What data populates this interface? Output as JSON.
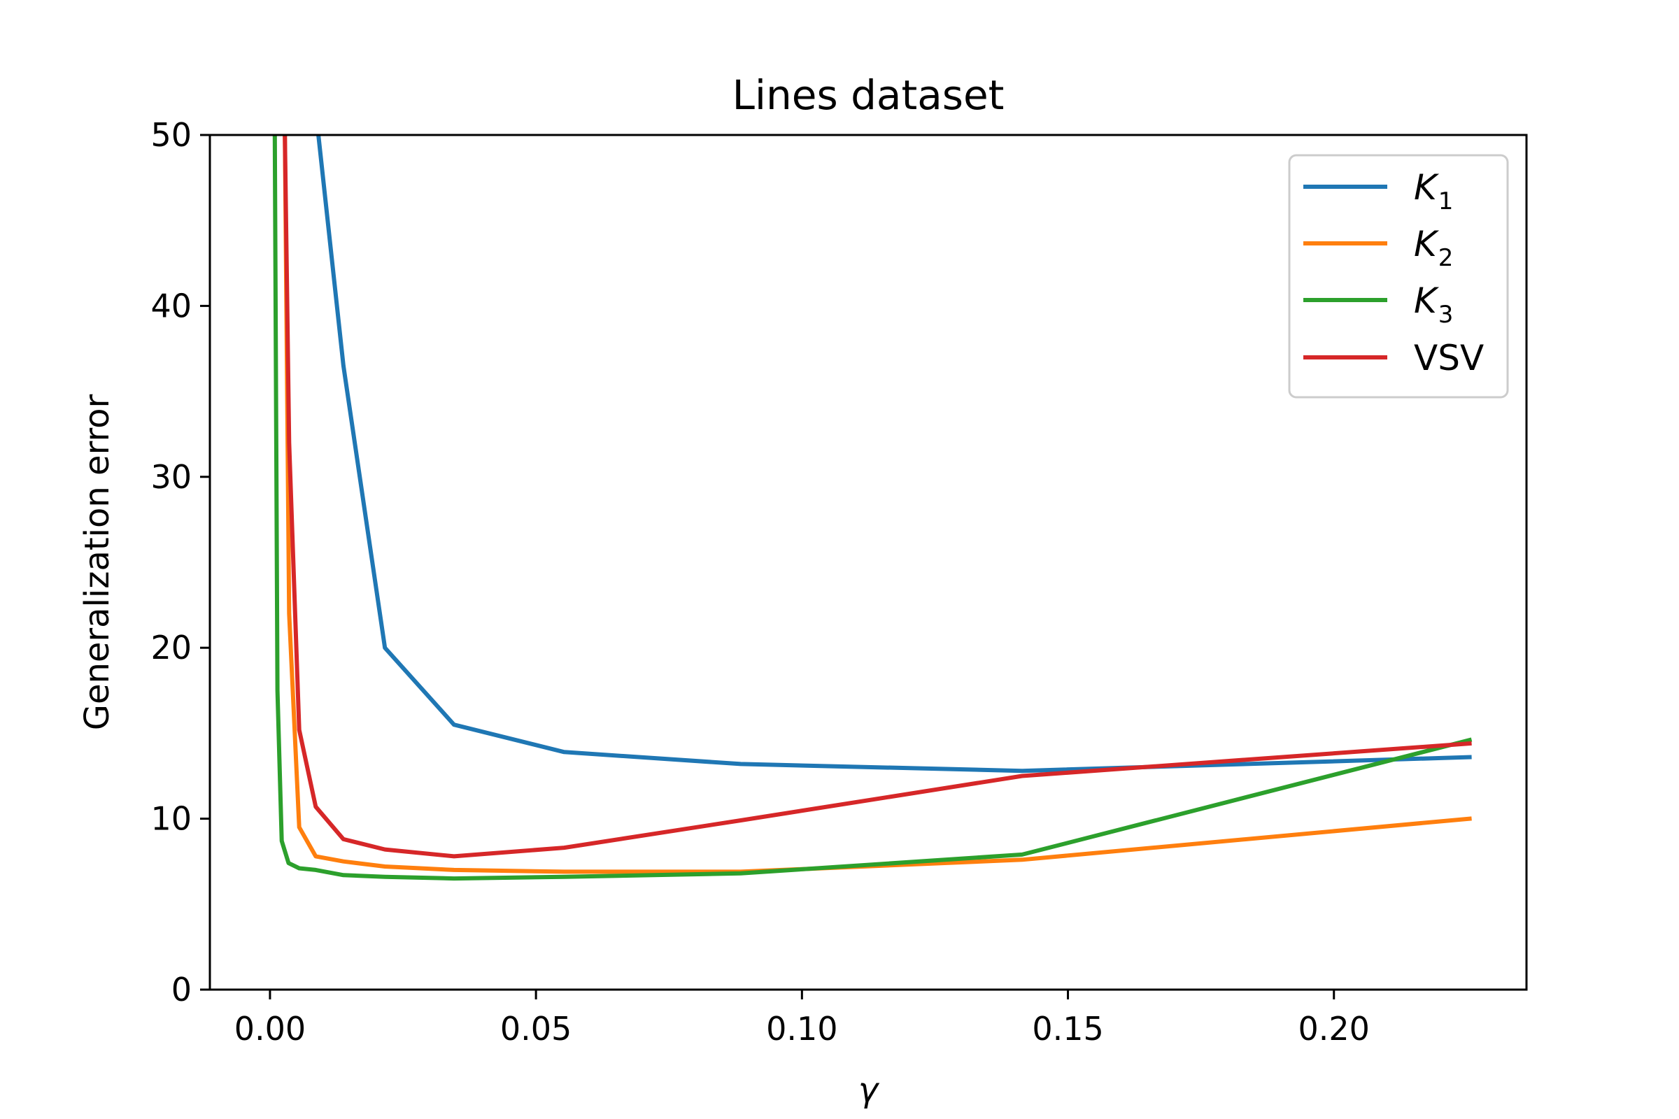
{
  "chart_data": {
    "type": "line",
    "title": "Lines dataset",
    "xlabel": "γ",
    "ylabel": "Generalization error",
    "xlim": [
      -0.0113,
      0.2362
    ],
    "ylim": [
      0,
      50
    ],
    "x_ticks": [
      0.0,
      0.05,
      0.1,
      0.15,
      0.2
    ],
    "x_tick_labels": [
      "0.00",
      "0.05",
      "0.10",
      "0.15",
      "0.20"
    ],
    "y_ticks": [
      0,
      10,
      20,
      30,
      40,
      50
    ],
    "y_tick_labels": [
      "0",
      "10",
      "20",
      "30",
      "40",
      "50"
    ],
    "grid": false,
    "legend_position": "top-right",
    "series": [
      {
        "name": "K1",
        "legend_main": "K",
        "legend_sub": "1",
        "color": "#1f77b4",
        "x": [
          0.0091,
          0.0138,
          0.0216,
          0.0346,
          0.0553,
          0.0885,
          0.1414,
          0.2255
        ],
        "y": [
          50.0,
          36.5,
          20.0,
          15.5,
          13.9,
          13.2,
          12.8,
          13.6
        ]
      },
      {
        "name": "K2",
        "legend_main": "K",
        "legend_sub": "2",
        "color": "#ff7f0e",
        "x": [
          0.0028,
          0.0036,
          0.0055,
          0.0086,
          0.0138,
          0.0216,
          0.0346,
          0.0553,
          0.0885,
          0.1414,
          0.2255
        ],
        "y": [
          50.0,
          22.0,
          9.5,
          7.8,
          7.5,
          7.2,
          7.0,
          6.9,
          6.9,
          7.6,
          10.0
        ]
      },
      {
        "name": "K3",
        "legend_main": "K",
        "legend_sub": "3",
        "color": "#2ca02c",
        "x": [
          0.0009,
          0.0014,
          0.0022,
          0.0035,
          0.0055,
          0.0086,
          0.0138,
          0.0216,
          0.0346,
          0.0553,
          0.0885,
          0.1414,
          0.2255
        ],
        "y": [
          50.0,
          17.5,
          8.7,
          7.4,
          7.1,
          7.0,
          6.7,
          6.6,
          6.5,
          6.6,
          6.8,
          7.9,
          14.6
        ]
      },
      {
        "name": "VSV",
        "legend_main": "VSV",
        "legend_sub": "",
        "color": "#d62728",
        "x": [
          0.0028,
          0.0036,
          0.0055,
          0.0086,
          0.0138,
          0.0216,
          0.0346,
          0.0553,
          0.0885,
          0.1414,
          0.2255
        ],
        "y": [
          50.0,
          32.0,
          15.2,
          10.7,
          8.8,
          8.2,
          7.8,
          8.3,
          9.9,
          12.5,
          14.4
        ]
      }
    ]
  }
}
